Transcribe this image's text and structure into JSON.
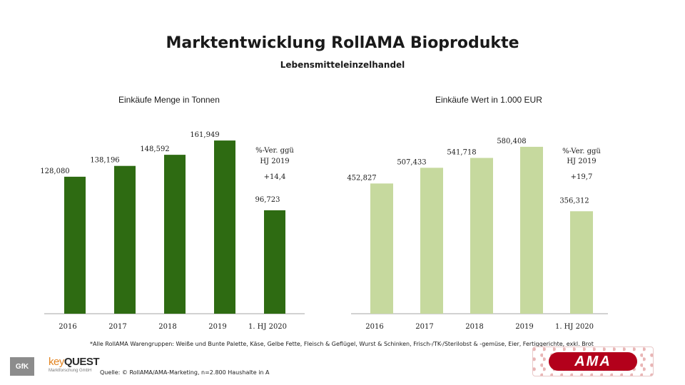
{
  "title": "Marktentwicklung RollAMA Bioprodukte",
  "subtitle": "Lebensmitteleinzelhandel",
  "chart_data": [
    {
      "type": "bar",
      "title": "Einkäufe Menge in Tonnen",
      "categories": [
        "2016",
        "2017",
        "2018",
        "2019",
        "1. HJ 2020"
      ],
      "values": [
        128080,
        138196,
        148592,
        161949,
        96723
      ],
      "labels": [
        "128,080",
        "138,196",
        "148,592",
        "161,949",
        "96,723"
      ],
      "color": "#2e6b12",
      "annotation_text": "%-Ver. ggü HJ 2019",
      "annotation_value": "+14,4"
    },
    {
      "type": "bar",
      "title": "Einkäufe Wert in 1.000 EUR",
      "categories": [
        "2016",
        "2017",
        "2018",
        "2019",
        "1. HJ 2020"
      ],
      "values": [
        452827,
        507433,
        541718,
        580408,
        356312
      ],
      "labels": [
        "452,827",
        "507,433",
        "541,718",
        "580,408",
        "356,312"
      ],
      "color": "#c6d99e",
      "annotation_text": "%-Ver. ggü HJ 2019",
      "annotation_value": "+19,7"
    }
  ],
  "footnote": "*Alle RollAMA Warengruppen: Weiße und Bunte Palette, Käse, Gelbe Fette, Fleisch & Geflügel, Wurst & Schinken, Frisch-/TK-/Sterilobst & -gemüse, Eier, Fertiggerichte, exkl. Brot",
  "source": "Quelle: © RollAMA/AMA-Marketing, n=2.800 Haushalte in A",
  "logos": {
    "gfk": "GfK",
    "keyquest_key": "key",
    "keyquest_quest": "QUEST",
    "keyquest_sub": "Marktforschung GmbH",
    "ama": "AMA"
  }
}
